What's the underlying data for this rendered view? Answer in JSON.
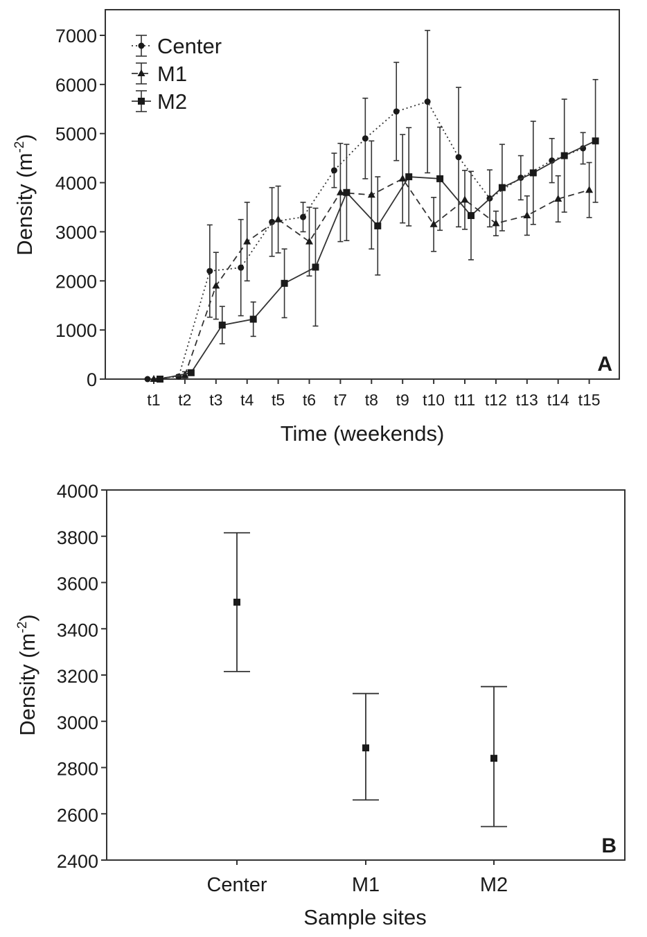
{
  "chart_data": [
    {
      "type": "line",
      "panel_label": "A",
      "xlabel": "Time (weekends)",
      "ylabel": "Density (m",
      "ylabel_sup": "-2",
      "ylabel_close": ")",
      "ylim": [
        0,
        7000
      ],
      "yticks": [
        "0",
        "1000",
        "2000",
        "3000",
        "4000",
        "5000",
        "6000",
        "7000"
      ],
      "categories": [
        "t1",
        "t2",
        "t3",
        "t4",
        "t5",
        "t6",
        "t7",
        "t8",
        "t9",
        "t10",
        "t11",
        "t12",
        "t13",
        "t14",
        "t15"
      ],
      "legend_position": "top-left",
      "grid": false,
      "series": [
        {
          "name": "Center",
          "marker": "circle",
          "line": "dotted",
          "x": [
            0.8,
            1.8,
            2.8,
            3.8,
            4.8,
            5.8,
            6.8,
            7.8,
            8.8,
            9.8,
            10.8,
            11.8,
            12.8,
            13.8,
            14.8
          ],
          "values": [
            0,
            50,
            2200,
            2270,
            3200,
            3300,
            4250,
            4900,
            5450,
            5650,
            4520,
            3680,
            4100,
            4450,
            4700
          ],
          "err": [
            0,
            40,
            940,
            980,
            700,
            300,
            350,
            820,
            1000,
            1450,
            1420,
            580,
            450,
            450,
            320
          ]
        },
        {
          "name": "M1",
          "marker": "triangle",
          "line": "dashed",
          "x": [
            1.0,
            2.0,
            3.0,
            4.0,
            5.0,
            6.0,
            7.0,
            8.0,
            9.0,
            10.0,
            11.0,
            12.0,
            13.0,
            14.0,
            15.0
          ],
          "values": [
            0,
            80,
            1900,
            2800,
            3250,
            2800,
            3800,
            3750,
            4080,
            3150,
            3650,
            3170,
            3330,
            3670,
            3850
          ],
          "err": [
            0,
            70,
            680,
            800,
            680,
            700,
            1000,
            1100,
            900,
            550,
            600,
            250,
            400,
            470,
            560
          ]
        },
        {
          "name": "M2",
          "marker": "square",
          "line": "solid",
          "x": [
            1.2,
            2.2,
            3.2,
            4.2,
            5.2,
            6.2,
            7.2,
            8.2,
            9.2,
            10.2,
            11.2,
            12.2,
            13.2,
            14.2,
            15.2
          ],
          "values": [
            0,
            130,
            1100,
            1220,
            1950,
            2280,
            3800,
            3120,
            4120,
            4080,
            3330,
            3900,
            4200,
            4550,
            4850
          ],
          "err": [
            0,
            40,
            380,
            350,
            700,
            1200,
            980,
            1000,
            1000,
            1050,
            900,
            880,
            1050,
            1150,
            1250
          ]
        }
      ]
    },
    {
      "type": "scatter",
      "panel_label": "B",
      "xlabel": "Sample sites",
      "ylabel": "Density (m",
      "ylabel_sup": "-2",
      "ylabel_close": ")",
      "ylim": [
        2400,
        4000
      ],
      "yticks": [
        "2400",
        "2600",
        "2800",
        "3000",
        "3200",
        "3400",
        "3600",
        "3800",
        "4000"
      ],
      "categories": [
        "Center",
        "M1",
        "M2"
      ],
      "grid": false,
      "values": [
        3515,
        2885,
        2840
      ],
      "err_low": [
        3215,
        2660,
        2545
      ],
      "err_high": [
        3815,
        3120,
        3150
      ]
    }
  ]
}
